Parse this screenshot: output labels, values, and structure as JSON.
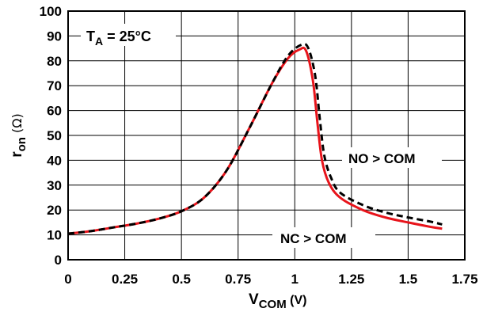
{
  "chart_data": {
    "type": "line",
    "xlabel": {
      "main": "V",
      "sub": "COM",
      "unit": "(V)"
    },
    "ylabel": {
      "main": "r",
      "sub": "on",
      "unit": "(Ω)"
    },
    "xlim": [
      0,
      1.75
    ],
    "ylim": [
      0,
      100
    ],
    "x_ticks": [
      0,
      0.25,
      0.5,
      0.75,
      1,
      1.25,
      1.5,
      1.75
    ],
    "x_tick_labels": [
      "0",
      "0.25",
      "0.5",
      "0.75",
      "1",
      "1.25",
      "1.5",
      "1.75"
    ],
    "y_ticks": [
      0,
      10,
      20,
      30,
      40,
      50,
      60,
      70,
      80,
      90,
      100
    ],
    "y_tick_labels": [
      "0",
      "10",
      "20",
      "30",
      "40",
      "50",
      "60",
      "70",
      "80",
      "90",
      "100"
    ],
    "grid": true,
    "annotation": {
      "main": "T",
      "sub": "A",
      "rest": " = 25°C"
    },
    "series_labels": [
      "NO > COM",
      "NC > COM"
    ],
    "series": [
      {
        "color": "#e8141b",
        "style": "solid",
        "points": [
          [
            0,
            10.5
          ],
          [
            0.1,
            11.5
          ],
          [
            0.2,
            13
          ],
          [
            0.3,
            14.5
          ],
          [
            0.4,
            16.5
          ],
          [
            0.5,
            19.5
          ],
          [
            0.6,
            25
          ],
          [
            0.7,
            36
          ],
          [
            0.8,
            53
          ],
          [
            0.9,
            71
          ],
          [
            0.97,
            81
          ],
          [
            1.02,
            84.5
          ],
          [
            1.05,
            84
          ],
          [
            1.08,
            72
          ],
          [
            1.1,
            55
          ],
          [
            1.12,
            40
          ],
          [
            1.15,
            31
          ],
          [
            1.2,
            25
          ],
          [
            1.3,
            20
          ],
          [
            1.4,
            17
          ],
          [
            1.5,
            15
          ],
          [
            1.6,
            13.2
          ],
          [
            1.65,
            12.5
          ]
        ]
      },
      {
        "color": "#000000",
        "style": "dashed",
        "points": [
          [
            0,
            10.5
          ],
          [
            0.1,
            11.5
          ],
          [
            0.2,
            13
          ],
          [
            0.3,
            14.5
          ],
          [
            0.4,
            16.5
          ],
          [
            0.5,
            19.5
          ],
          [
            0.6,
            25
          ],
          [
            0.7,
            36
          ],
          [
            0.8,
            53
          ],
          [
            0.9,
            71
          ],
          [
            0.97,
            82
          ],
          [
            1.03,
            86.5
          ],
          [
            1.06,
            85
          ],
          [
            1.09,
            74
          ],
          [
            1.11,
            57
          ],
          [
            1.13,
            42
          ],
          [
            1.16,
            33
          ],
          [
            1.2,
            27
          ],
          [
            1.3,
            22
          ],
          [
            1.4,
            19
          ],
          [
            1.5,
            17
          ],
          [
            1.6,
            15.3
          ],
          [
            1.65,
            14.2
          ]
        ]
      }
    ]
  }
}
